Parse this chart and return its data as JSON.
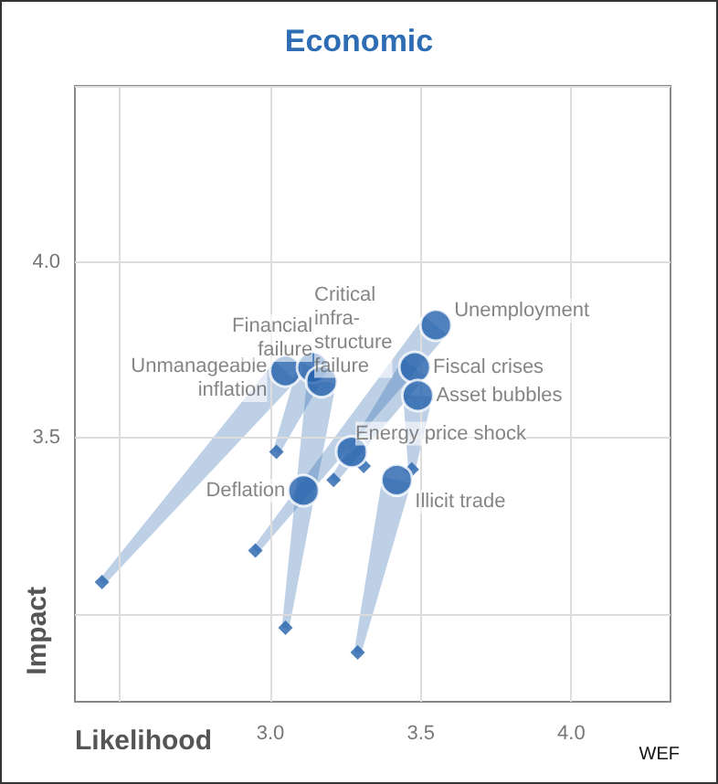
{
  "chart_data": {
    "type": "scatter",
    "title": "Economic",
    "xlabel": "Likelihood",
    "ylabel": "Impact",
    "xlim": [
      2.35,
      4.33
    ],
    "ylim": [
      2.75,
      4.5
    ],
    "xticks": [
      {
        "value": 2.5,
        "label": null
      },
      {
        "value": 3,
        "label": "3.0"
      },
      {
        "value": 3.5,
        "label": "3.5"
      },
      {
        "value": 4,
        "label": "4.0"
      }
    ],
    "yticks": [
      {
        "value": 3,
        "label": null
      },
      {
        "value": 3.5,
        "label": "3.5"
      },
      {
        "value": 4,
        "label": "4.0"
      },
      {
        "value": 4.5,
        "label": null
      }
    ],
    "grid": true,
    "series": [
      {
        "type": "scatter",
        "marker": "diamond",
        "color": "#2462ad",
        "x": [
          2.95,
          3.21,
          3.47,
          3.31,
          3.29,
          null,
          2.44,
          3.02,
          3.05
        ],
        "values": [
          3.18,
          3.38,
          3.41,
          3.42,
          2.89,
          null,
          3.09,
          3.46,
          2.96
        ]
      },
      {
        "type": "scatter",
        "marker": "circle",
        "color": "#2462ad",
        "x": [
          3.55,
          3.48,
          3.49,
          3.27,
          3.42,
          3.11,
          3.05,
          3.14,
          3.17
        ],
        "values": [
          3.82,
          3.7,
          3.62,
          3.46,
          3.38,
          3.35,
          3.69,
          3.7,
          3.66
        ]
      }
    ],
    "annotations": [
      {
        "text": "Unemployment",
        "x": 3.55,
        "y": 3.82
      },
      {
        "text": "Fiscal crises",
        "x": 3.48,
        "y": 3.7
      },
      {
        "text": "Asset bubbles",
        "x": 3.49,
        "y": 3.62
      },
      {
        "text": "Energy price shock",
        "x": 3.27,
        "y": 3.46
      },
      {
        "text": "Illicit trade",
        "x": 3.42,
        "y": 3.38
      },
      {
        "text": "Deflation",
        "x": 3.11,
        "y": 3.35
      },
      {
        "text": "Unmanageable\ninflation",
        "x": 3.05,
        "y": 3.69
      },
      {
        "text": "Financial\nfailure",
        "x": 3.14,
        "y": 3.7
      },
      {
        "text": "Critical\ninfra-\nstructure\nfailure",
        "x": 3.17,
        "y": 3.66
      },
      "WEF"
    ]
  }
}
